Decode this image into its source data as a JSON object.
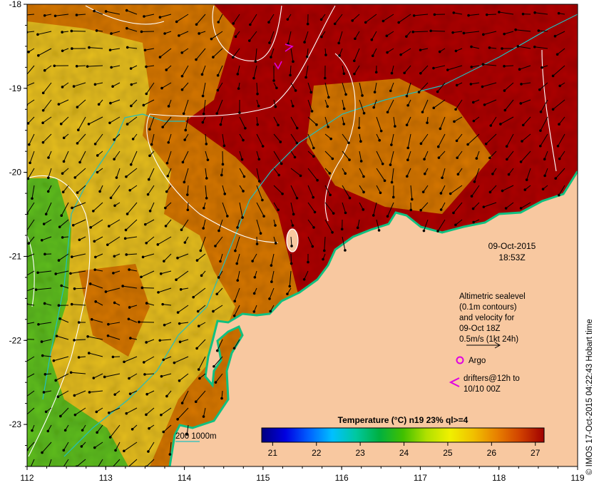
{
  "map": {
    "lon_range": [
      112,
      119
    ],
    "lat_range": [
      -23.5,
      -18
    ],
    "lon_ticks": [
      "112",
      "113",
      "114",
      "115",
      "116",
      "117",
      "118",
      "119"
    ],
    "lat_ticks": [
      "-18",
      "-19",
      "-20",
      "-21",
      "-22",
      "-23"
    ]
  },
  "timestamp": {
    "date": "09-Oct-2015",
    "time": "18:53Z"
  },
  "sealevel_legend": {
    "line1": "Altimetric sealevel",
    "line2": "(0.1m contours)",
    "line3": "and velocity for",
    "line4": "09-Oct 18Z",
    "line5": "0.5m/s (1kt 24h)"
  },
  "argo_legend": {
    "label": "Argo",
    "color": "#e000e0"
  },
  "drifter_legend": {
    "line1": "drifters@12h to",
    "line2": "10/10 00Z",
    "color": "#e000e0"
  },
  "bathymetry_legend": {
    "label": "200  1000m",
    "color": "#20c0c0"
  },
  "colorbar": {
    "title": "Temperature (°C) n19 23% ql>=4",
    "ticks": [
      "21",
      "22",
      "23",
      "24",
      "25",
      "26",
      "27"
    ],
    "range": [
      20.75,
      27.2
    ],
    "stops": [
      "#00007f",
      "#0000e0",
      "#0060ff",
      "#00c0ff",
      "#00c8a0",
      "#00b040",
      "#40c000",
      "#b0e000",
      "#f0f000",
      "#f0c000",
      "#e88000",
      "#d04000",
      "#a00000"
    ]
  },
  "credit": "© IMOS 17-Oct-2015 04:22:43 Hobart time",
  "colors": {
    "land": "#f8c8a0",
    "coast": "#10c080",
    "sea_warm": "#b01000",
    "sea_orange": "#d87810",
    "sea_yellow": "#e8c020",
    "sea_green": "#60c020",
    "contour": "#ffffff",
    "isobath": "#20c0c0",
    "arrow": "#000000"
  }
}
